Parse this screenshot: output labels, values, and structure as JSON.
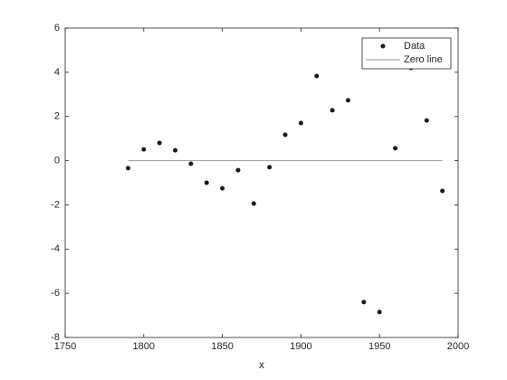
{
  "chart_data": {
    "type": "scatter",
    "x_label": "x",
    "series": [
      {
        "name": "Data",
        "color": "#1a1a1a",
        "mode": "markers",
        "x": [
          1790,
          1800,
          1810,
          1820,
          1830,
          1840,
          1850,
          1860,
          1870,
          1880,
          1890,
          1900,
          1910,
          1920,
          1930,
          1940,
          1950,
          1960,
          1970,
          1980,
          1990
        ],
        "values": [
          -0.34,
          0.51,
          0.8,
          0.47,
          -0.14,
          -1.0,
          -1.25,
          -0.43,
          -1.94,
          -0.3,
          1.17,
          1.7,
          3.83,
          2.28,
          2.73,
          -6.4,
          -6.85,
          0.56,
          4.2,
          1.82,
          -1.37
        ]
      },
      {
        "name": "Zero line",
        "color": "#a6a6a6",
        "mode": "line",
        "x": [
          1790,
          1990
        ],
        "values": [
          0,
          0
        ]
      }
    ],
    "xlim": [
      1750,
      2000
    ],
    "xticks": [
      1750,
      1800,
      1850,
      1900,
      1950,
      2000
    ],
    "ylim": [
      -8,
      6
    ],
    "yticks": [
      -8,
      -6,
      -4,
      -2,
      0,
      2,
      4,
      6
    ],
    "grid": false,
    "legend": "upper right"
  }
}
